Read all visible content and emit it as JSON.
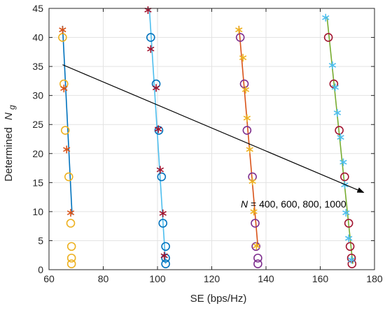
{
  "chart_data": {
    "type": "scatter",
    "xlabel": "SE (bps/Hz)",
    "ylabel_prefix": "Determined",
    "ylabel_symbol": "N",
    "ylabel_subscript": "g",
    "xlim": [
      60,
      180
    ],
    "ylim": [
      0,
      45
    ],
    "x_ticks": [
      60,
      80,
      100,
      120,
      140,
      160,
      180
    ],
    "y_ticks": [
      0,
      5,
      10,
      15,
      20,
      25,
      30,
      35,
      40,
      45
    ],
    "grid": true,
    "annotation": {
      "symbol": "N",
      "rest": " =  400, 600, 800, 1000",
      "arrow_from": [
        65,
        35.3
      ],
      "arrow_to": [
        176,
        13.3
      ]
    },
    "groups": [
      {
        "line_color": "#0072BD",
        "line": [
          [
            65,
            42
          ],
          [
            68.5,
            9.5
          ]
        ],
        "circle_color": "#EDB120",
        "circles": [
          [
            65,
            40
          ],
          [
            65.5,
            32
          ],
          [
            66,
            24
          ],
          [
            67.3,
            16
          ],
          [
            68,
            8
          ],
          [
            68.3,
            4
          ],
          [
            68.3,
            2
          ],
          [
            68.3,
            1
          ]
        ],
        "star_color": "#D95319",
        "stars": [
          [
            65,
            41.3
          ],
          [
            65.5,
            31.2
          ],
          [
            66.5,
            20.7
          ],
          [
            68,
            9.8
          ]
        ]
      },
      {
        "line_color": "#4DBEEE",
        "line": [
          [
            97,
            45
          ],
          [
            103,
            1
          ]
        ],
        "circle_color": "#0072BD",
        "circles": [
          [
            97.5,
            40
          ],
          [
            99.5,
            32
          ],
          [
            100.5,
            24
          ],
          [
            101.5,
            16
          ],
          [
            102,
            8
          ],
          [
            103,
            4
          ],
          [
            103,
            2
          ],
          [
            103,
            1
          ]
        ],
        "star_color": "#A2142F",
        "stars": [
          [
            96.5,
            44.7
          ],
          [
            97.5,
            38
          ],
          [
            99.5,
            31.3
          ],
          [
            100.3,
            24.2
          ],
          [
            101,
            17.2
          ],
          [
            102,
            9.7
          ],
          [
            102.5,
            2.4
          ]
        ]
      },
      {
        "line_color": "#D95319",
        "line": [
          [
            130,
            42
          ],
          [
            137,
            4
          ]
        ],
        "circle_color": "#7E2F8E",
        "circles": [
          [
            130.5,
            40
          ],
          [
            132,
            32
          ],
          [
            133,
            24
          ],
          [
            135,
            16
          ],
          [
            136,
            8
          ],
          [
            136.3,
            4
          ],
          [
            137,
            2
          ],
          [
            137,
            1
          ]
        ],
        "star_color": "#EDB120",
        "stars": [
          [
            130,
            41.3
          ],
          [
            131.5,
            36.5
          ],
          [
            132.5,
            31
          ],
          [
            133,
            26.1
          ],
          [
            134,
            20.7
          ],
          [
            135,
            15.2
          ],
          [
            135.5,
            10
          ],
          [
            136.5,
            4.1
          ]
        ]
      },
      {
        "line_color": "#77AC30",
        "line": [
          [
            162.5,
            43.5
          ],
          [
            172,
            1
          ]
        ],
        "circle_color": "#A2142F",
        "circles": [
          [
            163,
            40
          ],
          [
            165,
            32
          ],
          [
            167,
            24
          ],
          [
            169,
            16
          ],
          [
            170.5,
            8
          ],
          [
            171,
            4
          ],
          [
            171.5,
            2
          ],
          [
            171.7,
            1
          ]
        ],
        "star_color": "#4DBEEE",
        "stars": [
          [
            162,
            43.4
          ],
          [
            164.5,
            35.2
          ],
          [
            165.5,
            31.4
          ],
          [
            166.3,
            27
          ],
          [
            167.5,
            22.8
          ],
          [
            168.5,
            18.5
          ],
          [
            169,
            14.6
          ],
          [
            169.5,
            9.8
          ],
          [
            170.5,
            5.4
          ],
          [
            171.5,
            1.7
          ]
        ]
      }
    ]
  }
}
